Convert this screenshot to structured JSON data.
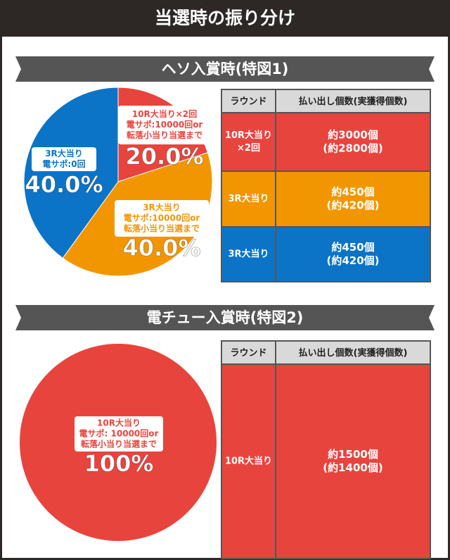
{
  "title": "当選時の振り分け",
  "sections": [
    {
      "heading": "ヘソ入賞時(特図1)",
      "pie": {
        "type": "pie",
        "slices": [
          {
            "lines": [
              "10R大当り×2回",
              "電サポ:10000回or",
              "転落小当り当選まで"
            ],
            "value": 20,
            "value_label": "20.0%",
            "color": "#e8443e"
          },
          {
            "lines": [
              "3R大当り",
              "電サポ:10000回or",
              "転落小当り当選まで"
            ],
            "value": 40,
            "value_label": "40.0%",
            "color": "#f29600"
          },
          {
            "lines": [
              "3R大当り",
              "電サポ:0回"
            ],
            "value": 40,
            "value_label": "40.0%",
            "color": "#0b74c6"
          }
        ]
      },
      "table": {
        "columns": [
          "ラウンド",
          "払い出し個数(実獲得個数)"
        ],
        "rows": [
          {
            "round": [
              "10R大当り",
              "×2回"
            ],
            "payout": [
              "約3000個",
              "(約2800個)"
            ],
            "color": "#e8443e"
          },
          {
            "round": [
              "3R大当り"
            ],
            "payout": [
              "約450個",
              "(約420個)"
            ],
            "color": "#f29600"
          },
          {
            "round": [
              "3R大当り"
            ],
            "payout": [
              "約450個",
              "(約420個)"
            ],
            "color": "#0b74c6"
          }
        ]
      }
    },
    {
      "heading": "電チュー入賞時(特図2)",
      "pie": {
        "type": "pie",
        "slices": [
          {
            "lines": [
              "10R大当り",
              "電サポ: 10000回or",
              "転落小当り当選まで"
            ],
            "value": 100,
            "value_label": "100%",
            "color": "#e8443e"
          }
        ]
      },
      "table": {
        "columns": [
          "ラウンド",
          "払い出し個数(実獲得個数)"
        ],
        "rows": [
          {
            "round": [
              "10R大当り"
            ],
            "payout": [
              "約1500個",
              "(約1400個)"
            ],
            "color": "#e8443e"
          }
        ]
      }
    }
  ]
}
